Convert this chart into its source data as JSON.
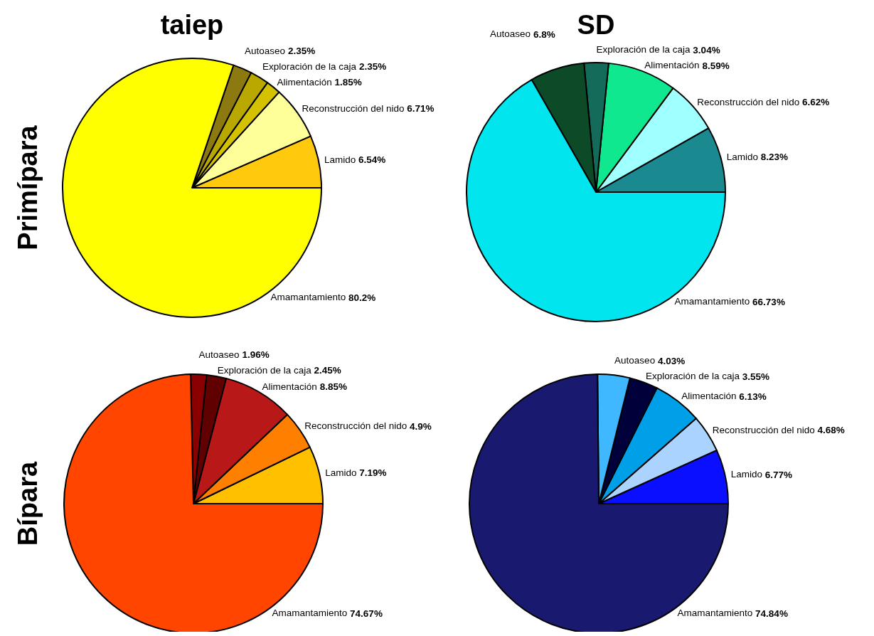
{
  "chart_data": [
    {
      "type": "pie",
      "title": "taiep",
      "ylabel": "Primípara",
      "categories": [
        "Lamido",
        "Reconstrucción del nido",
        "Alimentación",
        "Exploración de la caja",
        "Autoaseo",
        "Amamantamiento"
      ],
      "values": [
        6.54,
        6.71,
        1.85,
        2.35,
        2.35,
        80.2
      ],
      "value_labels": [
        "6.54%",
        "6.71%",
        "1.85%",
        "2.35%",
        "2.35%",
        "80.2%"
      ],
      "colors": [
        "#ffc90e",
        "#ffff99",
        "#d4c200",
        "#b8a800",
        "#8c7a10",
        "#ffff00"
      ]
    },
    {
      "type": "pie",
      "title": "SD",
      "categories": [
        "Lamido",
        "Reconstrucción del nido",
        "Alimentación",
        "Exploración de la caja",
        "Autoaseo",
        "Amamantamiento"
      ],
      "values": [
        8.23,
        6.62,
        8.59,
        3.04,
        6.8,
        66.73
      ],
      "value_labels": [
        "8.23%",
        "6.62%",
        "8.59%",
        "3.04%",
        "6.8%",
        "66.73%"
      ],
      "colors": [
        "#1a8a90",
        "#a0ffff",
        "#10e890",
        "#156b5a",
        "#0d4a28",
        "#00e5ee"
      ]
    },
    {
      "type": "pie",
      "ylabel": "Bípara",
      "categories": [
        "Lamido",
        "Reconstrucción del nido",
        "Alimentación",
        "Exploración de la caja",
        "Autoaseo",
        "Amamantamiento"
      ],
      "values": [
        7.19,
        4.9,
        8.85,
        2.45,
        1.96,
        74.67
      ],
      "value_labels": [
        "7.19%",
        "4.9%",
        "8.85%",
        "2.45%",
        "1.96%",
        "74.67%"
      ],
      "colors": [
        "#ffc000",
        "#ff8000",
        "#b81818",
        "#600000",
        "#8b0000",
        "#ff4500"
      ]
    },
    {
      "type": "pie",
      "categories": [
        "Lamido",
        "Reconstrucción del nido",
        "Alimentación",
        "Exploración de la caja",
        "Autoaseo",
        "Amamantamiento"
      ],
      "values": [
        6.77,
        4.68,
        6.13,
        3.55,
        4.03,
        74.84
      ],
      "value_labels": [
        "6.77%",
        "4.68%",
        "6.13%",
        "3.55%",
        "4.03%",
        "74.84%"
      ],
      "colors": [
        "#0a10ff",
        "#aad4ff",
        "#00a0e8",
        "#00003a",
        "#40b8ff",
        "#191970"
      ]
    }
  ]
}
